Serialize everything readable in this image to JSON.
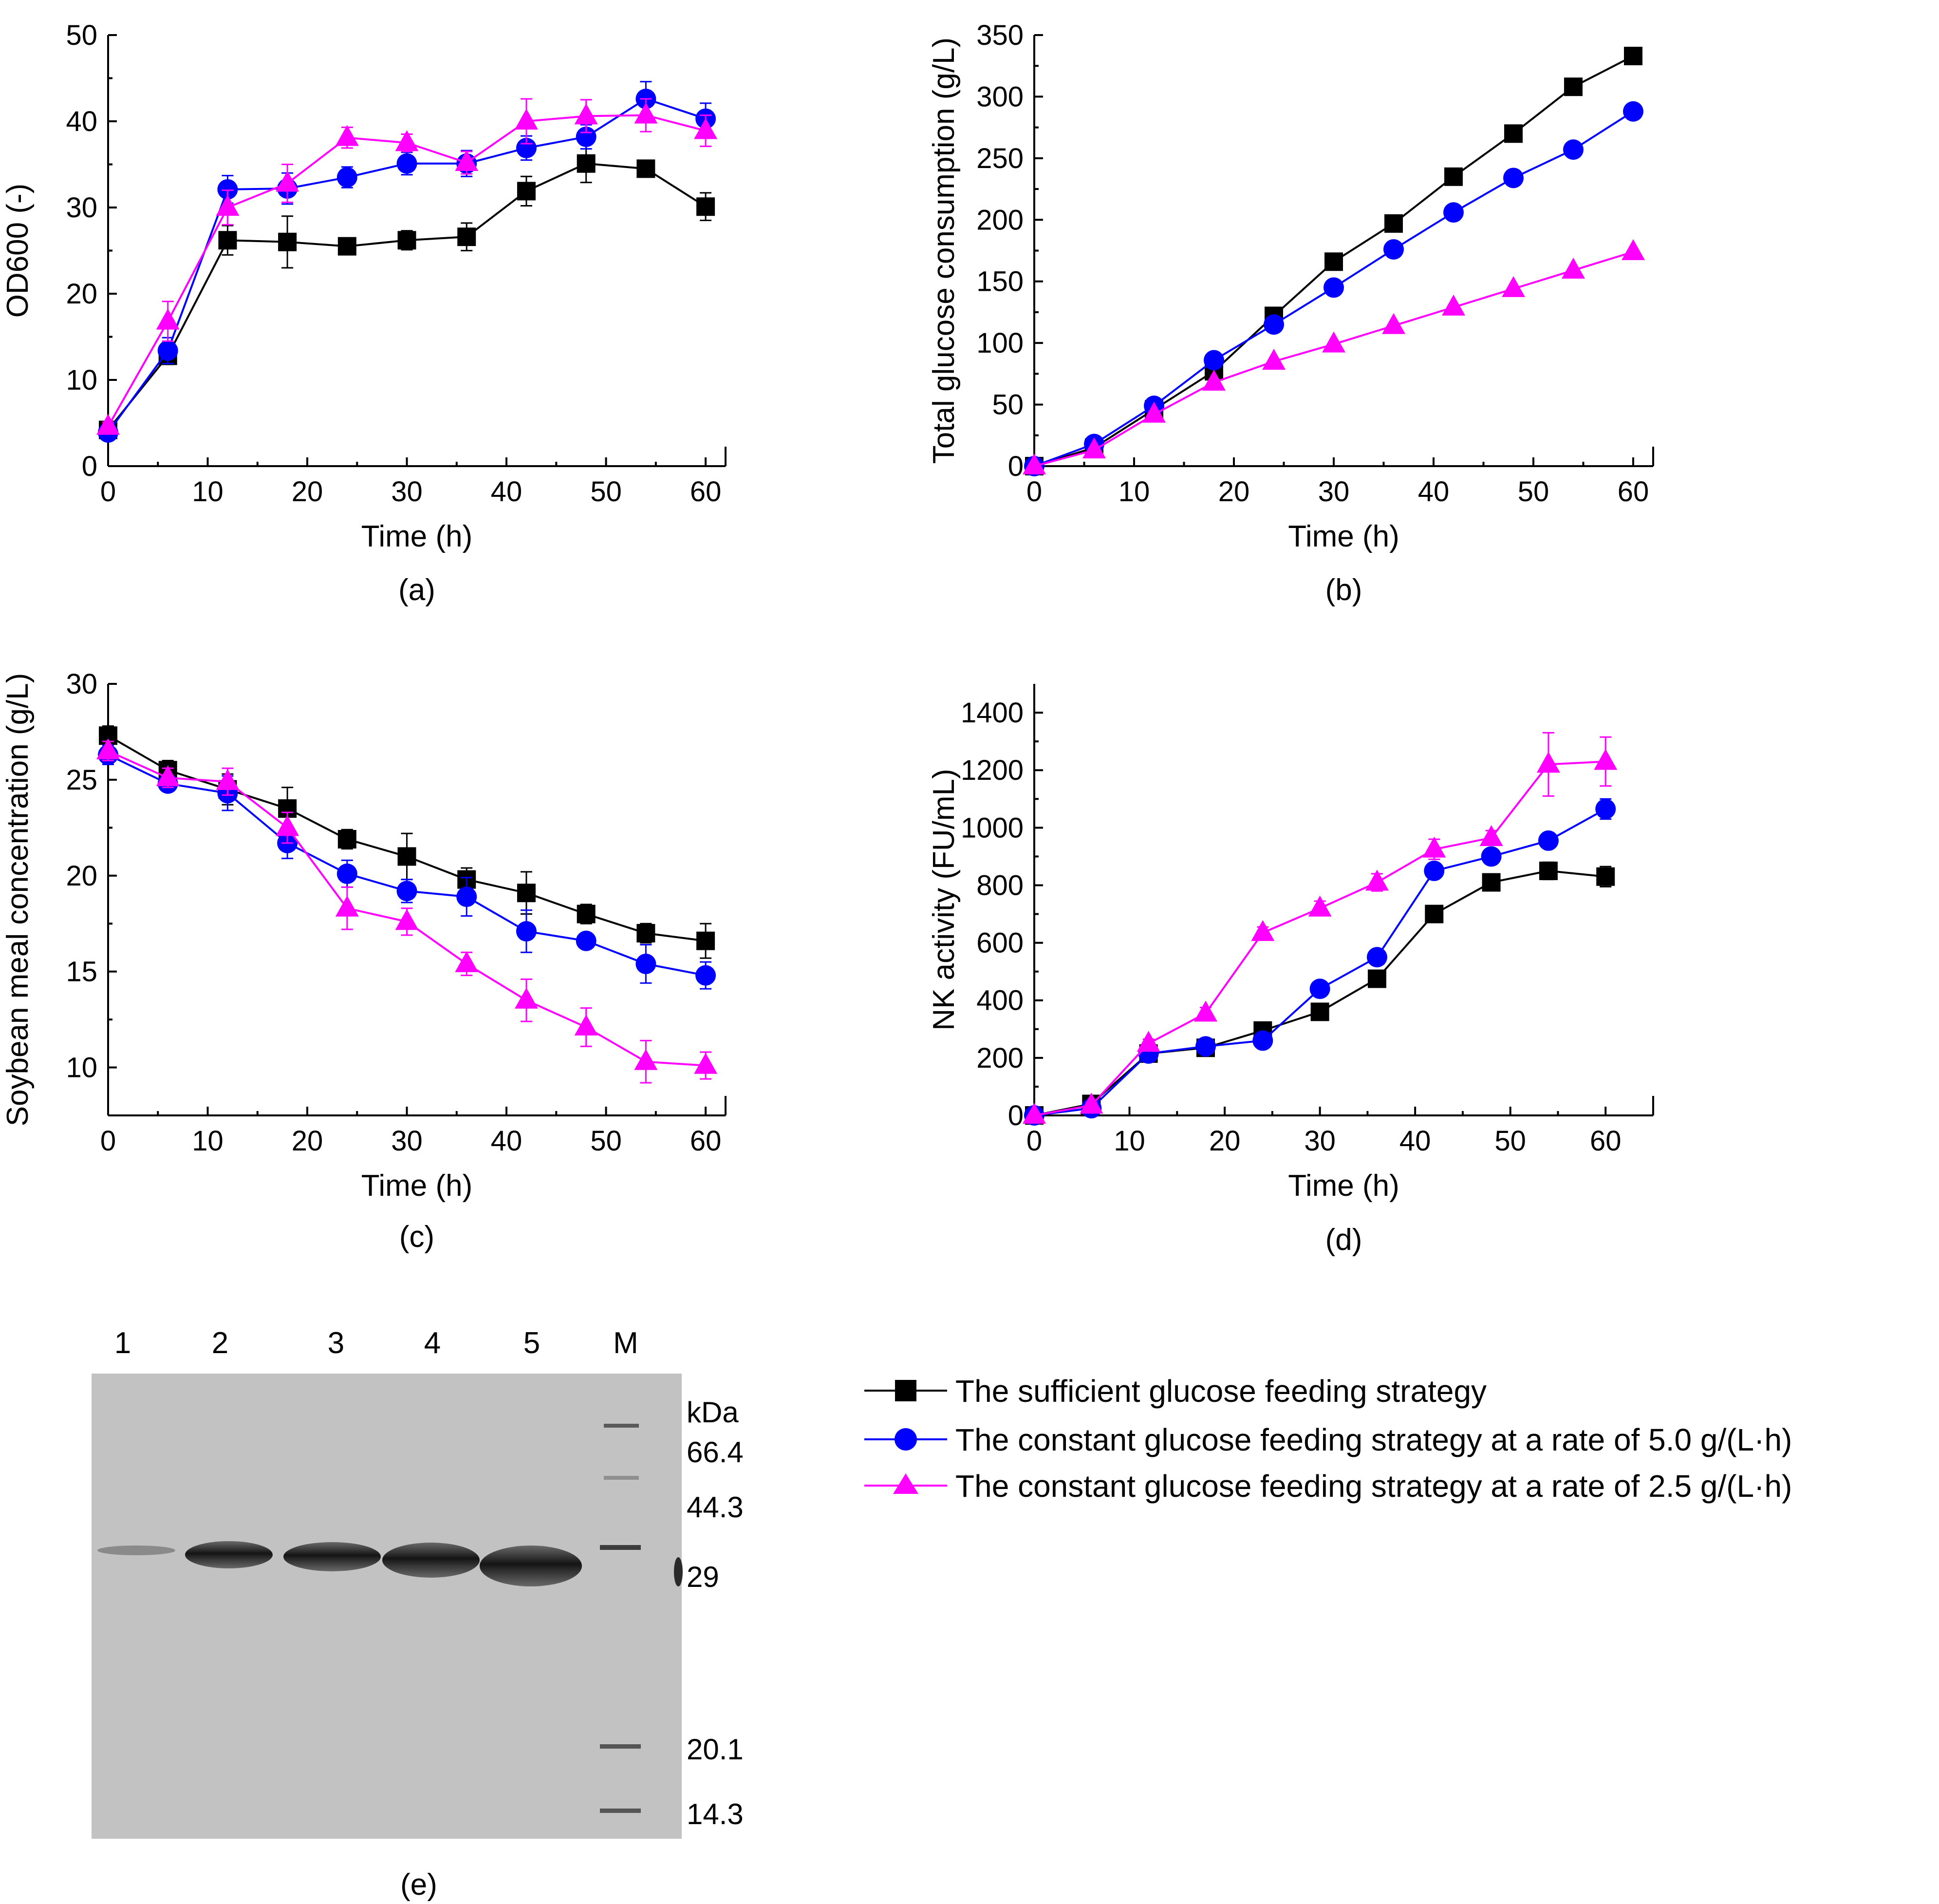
{
  "legend": {
    "items": [
      {
        "series": "sufficient",
        "label": "The sufficient glucose feeding strategy",
        "color": "#000000",
        "marker": "square"
      },
      {
        "series": "constant_5",
        "label": "The constant glucose feeding strategy at a rate of 5.0 g/(L·h)",
        "color": "#0000FF",
        "marker": "circle"
      },
      {
        "series": "constant_2_5",
        "label": "The constant glucose feeding strategy at a rate of 2.5 g/(L·h)",
        "color": "#FF00FF",
        "marker": "triangle"
      }
    ]
  },
  "chart_data": [
    {
      "id": "a",
      "panel_label": "(a)",
      "type": "line",
      "xlabel": "Time (h)",
      "ylabel": "OD600 (-)",
      "xlim": [
        0,
        62
      ],
      "ylim": [
        0,
        50
      ],
      "xticks": [
        0,
        10,
        20,
        30,
        40,
        50,
        60
      ],
      "yticks": [
        0,
        10,
        20,
        30,
        40,
        50
      ],
      "x": [
        0,
        6,
        12,
        18,
        24,
        30,
        36,
        42,
        48,
        54,
        60
      ],
      "series": [
        {
          "name": "The sufficient glucose feeding strategy",
          "color": "#000000",
          "marker": "square",
          "values": [
            4.2,
            12.8,
            26.2,
            26.0,
            25.5,
            26.2,
            26.6,
            31.9,
            35.1,
            34.5,
            30.1
          ],
          "errors": [
            0.5,
            1.0,
            1.7,
            3.0,
            0.6,
            1.1,
            1.6,
            1.7,
            2.2,
            0.6,
            1.6
          ]
        },
        {
          "name": "The constant glucose feeding strategy at a rate of 5.0 g/(L·h)",
          "color": "#0000FF",
          "marker": "circle",
          "values": [
            3.9,
            13.4,
            32.1,
            32.2,
            33.5,
            35.1,
            35.1,
            36.9,
            38.2,
            42.6,
            40.3
          ],
          "errors": [
            0.5,
            1.5,
            1.6,
            1.8,
            1.2,
            1.3,
            1.5,
            1.4,
            1.4,
            2.0,
            1.8
          ]
        },
        {
          "name": "The constant glucose feeding strategy at a rate of 2.5 g/(L·h)",
          "color": "#FF00FF",
          "marker": "triangle",
          "values": [
            4.6,
            16.8,
            30.0,
            32.8,
            38.1,
            37.5,
            35.2,
            40.0,
            40.6,
            40.7,
            38.9
          ],
          "errors": [
            0.5,
            2.3,
            2.0,
            2.2,
            1.2,
            1.0,
            1.3,
            2.6,
            1.9,
            1.9,
            1.8
          ]
        }
      ]
    },
    {
      "id": "b",
      "panel_label": "(b)",
      "type": "line",
      "xlabel": "Time (h)",
      "ylabel": "Total glucose consumption (g/L)",
      "xlim": [
        0,
        62
      ],
      "ylim": [
        0,
        350
      ],
      "xticks": [
        0,
        10,
        20,
        30,
        40,
        50,
        60
      ],
      "yticks": [
        0,
        50,
        100,
        150,
        200,
        250,
        300,
        350
      ],
      "x": [
        0,
        6,
        12,
        18,
        24,
        30,
        36,
        42,
        48,
        54,
        60
      ],
      "series": [
        {
          "name": "The sufficient glucose feeding strategy",
          "color": "#000000",
          "marker": "square",
          "values": [
            0,
            15,
            46,
            77,
            122,
            166,
            197,
            235,
            270,
            308,
            333
          ],
          "errors": [
            0,
            0,
            0,
            0,
            0,
            0,
            0,
            0,
            0,
            0,
            0
          ]
        },
        {
          "name": "The constant glucose feeding strategy at a rate of 5.0 g/(L·h)",
          "color": "#0000FF",
          "marker": "circle",
          "values": [
            0,
            18,
            49,
            86,
            115,
            145,
            176,
            206,
            234,
            257,
            288
          ],
          "errors": [
            0,
            0,
            0,
            0,
            0,
            0,
            0,
            0,
            0,
            0,
            0
          ]
        },
        {
          "name": "The constant glucose feeding strategy at a rate of 2.5 g/(L·h)",
          "color": "#FF00FF",
          "marker": "triangle",
          "values": [
            0,
            13,
            42,
            68,
            85,
            99,
            114,
            129,
            144,
            159,
            174
          ],
          "errors": [
            0,
            0,
            0,
            0,
            0,
            0,
            0,
            0,
            0,
            0,
            0
          ]
        }
      ]
    },
    {
      "id": "c",
      "panel_label": "(c)",
      "type": "line",
      "xlabel": "Time (h)",
      "ylabel": "Soybean meal concentration (g/L)",
      "xlim": [
        0,
        62
      ],
      "ylim": [
        7.5,
        30
      ],
      "xticks": [
        0,
        10,
        20,
        30,
        40,
        50,
        60
      ],
      "yticks": [
        10,
        15,
        20,
        25,
        30
      ],
      "x": [
        0,
        6,
        12,
        18,
        24,
        30,
        36,
        42,
        48,
        54,
        60
      ],
      "series": [
        {
          "name": "The sufficient glucose feeding strategy",
          "color": "#000000",
          "marker": "square",
          "values": [
            27.3,
            25.5,
            24.5,
            23.5,
            21.9,
            21.0,
            19.8,
            19.1,
            18.0,
            17.0,
            16.6
          ],
          "errors": [
            0.5,
            0.5,
            0.8,
            1.1,
            0.5,
            1.2,
            0.6,
            1.1,
            0.5,
            0.5,
            0.9
          ]
        },
        {
          "name": "The constant glucose feeding strategy at a rate of 5.0 g/(L·h)",
          "color": "#0000FF",
          "marker": "circle",
          "values": [
            26.3,
            24.8,
            24.3,
            21.7,
            20.1,
            19.2,
            18.9,
            17.1,
            16.6,
            15.4,
            14.8
          ],
          "errors": [
            0.5,
            0.4,
            0.9,
            0.8,
            0.7,
            0.6,
            1.0,
            1.1,
            0.4,
            1.0,
            0.7
          ]
        },
        {
          "name": "The constant glucose feeding strategy at a rate of 2.5 g/(L·h)",
          "color": "#FF00FF",
          "marker": "triangle",
          "values": [
            26.5,
            25.1,
            24.9,
            22.5,
            18.3,
            17.6,
            15.4,
            13.5,
            12.1,
            10.3,
            10.1
          ],
          "errors": [
            0.5,
            0.5,
            0.7,
            0.8,
            1.1,
            0.7,
            0.6,
            1.1,
            1.0,
            1.1,
            0.7
          ]
        }
      ]
    },
    {
      "id": "d",
      "panel_label": "(d)",
      "type": "line",
      "xlabel": "Time (h)",
      "ylabel": "NK activity (FU/mL)",
      "xlim": [
        0,
        65
      ],
      "ylim": [
        0,
        1500
      ],
      "xticks": [
        0,
        10,
        20,
        30,
        40,
        50,
        60
      ],
      "yticks": [
        0,
        200,
        400,
        600,
        800,
        1000,
        1200,
        1400
      ],
      "x": [
        0,
        6,
        12,
        18,
        24,
        30,
        36,
        42,
        48,
        54,
        60
      ],
      "series": [
        {
          "name": "The sufficient glucose feeding strategy",
          "color": "#000000",
          "marker": "square",
          "values": [
            0,
            40,
            215,
            235,
            295,
            360,
            475,
            700,
            810,
            850,
            830
          ],
          "errors": [
            0,
            10,
            10,
            10,
            10,
            10,
            15,
            15,
            15,
            30,
            35
          ]
        },
        {
          "name": "The constant glucose feeding strategy at a rate of 5.0 g/(L·h)",
          "color": "#0000FF",
          "marker": "circle",
          "values": [
            0,
            25,
            215,
            240,
            260,
            440,
            550,
            850,
            900,
            955,
            1065
          ],
          "errors": [
            0,
            10,
            10,
            10,
            10,
            15,
            15,
            20,
            20,
            20,
            35
          ]
        },
        {
          "name": "The constant glucose feeding strategy at a rate of 2.5 g/(L·h)",
          "color": "#FF00FF",
          "marker": "triangle",
          "values": [
            0,
            35,
            250,
            355,
            635,
            720,
            810,
            925,
            965,
            1220,
            1230
          ],
          "errors": [
            0,
            10,
            15,
            20,
            20,
            25,
            30,
            35,
            25,
            110,
            85
          ]
        }
      ]
    }
  ],
  "gel": {
    "panel_label": "(e)",
    "lane_labels": [
      "1",
      "2",
      "3",
      "4",
      "5",
      "M"
    ],
    "marker_unit": "kDa",
    "marker_sizes": [
      "66.4",
      "44.3",
      "29",
      "20.1",
      "14.3"
    ]
  }
}
